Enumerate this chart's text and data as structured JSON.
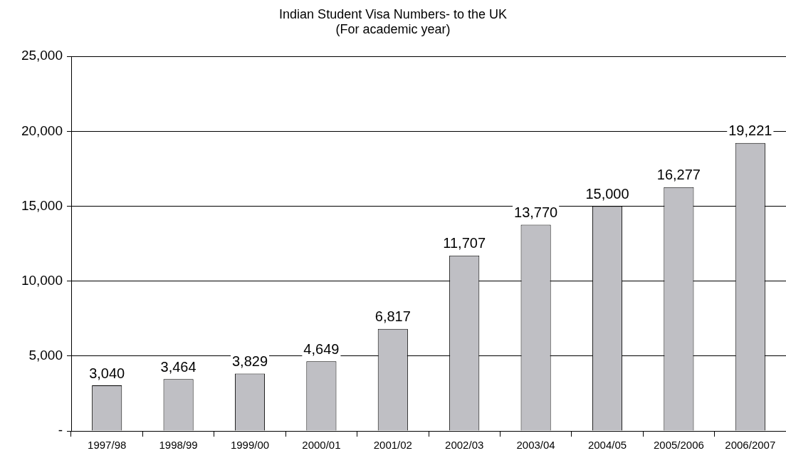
{
  "chart_data": {
    "type": "bar",
    "title": "Indian Student Visa Numbers- to the UK",
    "subtitle": "(For academic year)",
    "categories": [
      "1997/98",
      "1998/99",
      "1999/00",
      "2000/01",
      "2001/02",
      "2002/03",
      "2003/04",
      "2004/05",
      "2005/2006",
      "2006/2007"
    ],
    "values": [
      3040,
      3464,
      3829,
      4649,
      6817,
      11707,
      13770,
      15000,
      16277,
      19221
    ],
    "value_labels": [
      "3,040",
      "3,464",
      "3,829",
      "4,649",
      "6,817",
      "11,707",
      "13,770",
      "15,000",
      "16,277",
      "19,221"
    ],
    "color": "#bfbfc4",
    "ylim": [
      0,
      25000
    ],
    "yticks": [
      {
        "value": 0,
        "label": "-"
      },
      {
        "value": 5000,
        "label": "5,000"
      },
      {
        "value": 10000,
        "label": "10,000"
      },
      {
        "value": 15000,
        "label": "15,000"
      },
      {
        "value": 20000,
        "label": "20,000"
      },
      {
        "value": 25000,
        "label": "25,000"
      }
    ],
    "grid": "y"
  }
}
